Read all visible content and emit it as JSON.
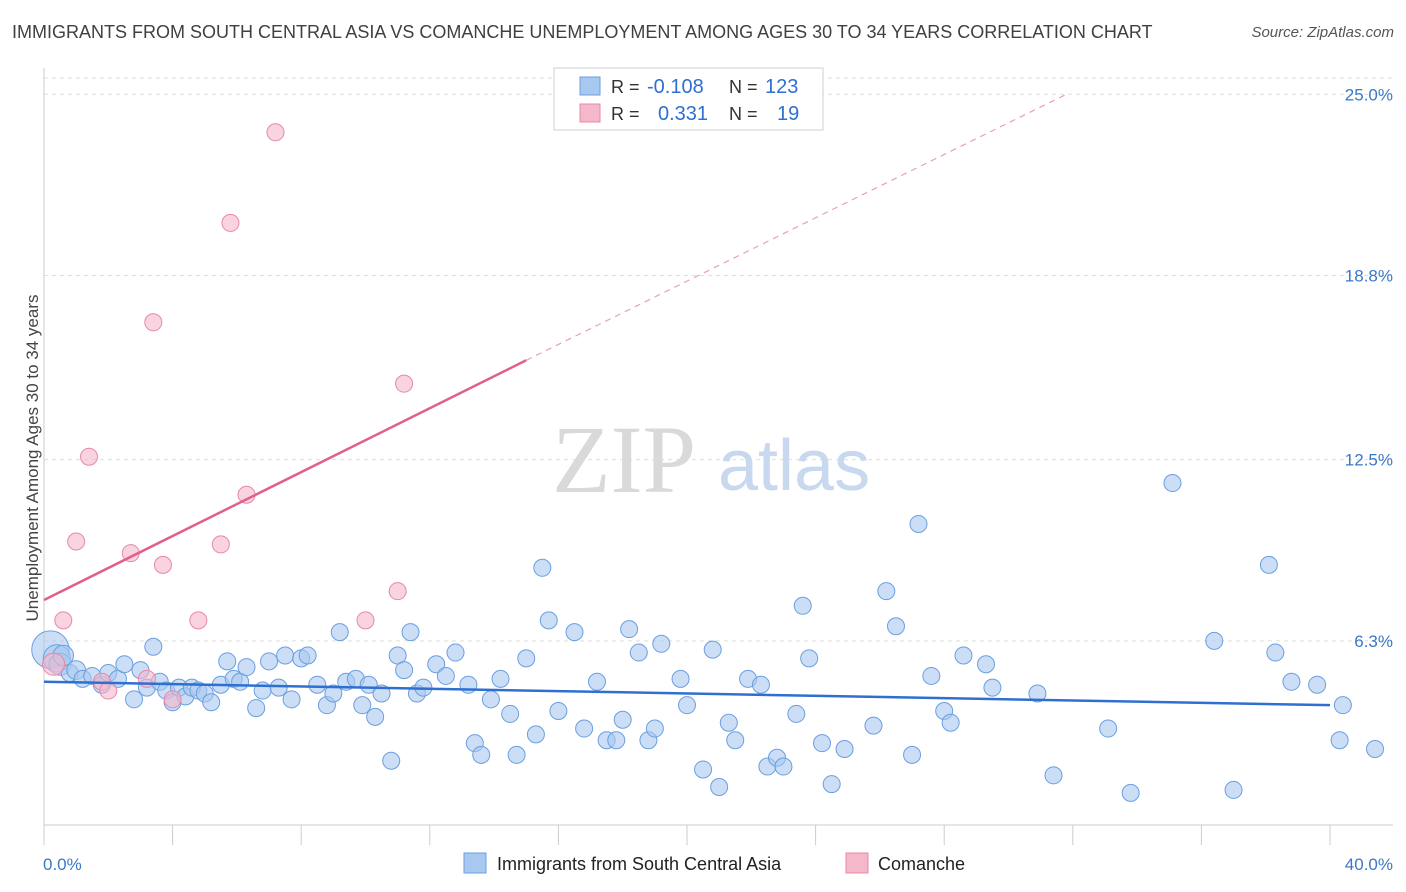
{
  "title": "IMMIGRANTS FROM SOUTH CENTRAL ASIA VS COMANCHE UNEMPLOYMENT AMONG AGES 30 TO 34 YEARS CORRELATION CHART",
  "source": "Source: ZipAtlas.com",
  "watermark": {
    "zip": "ZIP",
    "atlas": "atlas"
  },
  "legend_box": [
    {
      "r_label": "R =",
      "r_value": "-0.108",
      "n_label": "N =",
      "n_value": "123",
      "color": "#a9c8f0"
    },
    {
      "r_label": "R =",
      "r_value": "0.331",
      "n_label": "N =",
      "n_value": "19",
      "color": "#f5b8cb"
    }
  ],
  "bottom_legend": [
    {
      "label": "Immigrants from South Central Asia",
      "color": "#a9c8f0"
    },
    {
      "label": "Comanche",
      "color": "#f5b8cb"
    }
  ],
  "chart_data": {
    "type": "scatter",
    "title": "IMMIGRANTS FROM SOUTH CENTRAL ASIA VS COMANCHE UNEMPLOYMENT AMONG AGES 30 TO 34 YEARS CORRELATION CHART",
    "xlabel": "",
    "ylabel": "Unemployment Among Ages 30 to 34 years",
    "xlim": [
      0,
      40
    ],
    "ylim": [
      0,
      25.9
    ],
    "x_tick_labels": [
      "0.0%",
      "40.0%"
    ],
    "y_ticks": [
      6.3,
      12.5,
      18.8,
      25.0
    ],
    "y_tick_labels": [
      "6.3%",
      "12.5%",
      "18.8%",
      "25.0%"
    ],
    "grid": "horizontal dashed",
    "legend_position": "top-center",
    "series": [
      {
        "name": "Immigrants from South Central Asia",
        "color": "#a9c8f0",
        "stroke": "#6a9fe0",
        "trend": {
          "x": [
            0,
            40
          ],
          "y": [
            4.9,
            4.1
          ],
          "color": "#2f6fd0"
        },
        "points": [
          [
            0.2,
            6.0,
            2.2
          ],
          [
            0.4,
            5.7,
            1.6
          ],
          [
            0.5,
            5.5,
            1.3
          ],
          [
            0.6,
            5.8,
            1.2
          ],
          [
            0.8,
            5.2,
            1.0
          ],
          [
            1.0,
            5.3,
            1.1
          ],
          [
            1.2,
            5.0,
            1.0
          ],
          [
            1.5,
            5.1,
            1.0
          ],
          [
            1.8,
            4.8,
            1
          ],
          [
            2.0,
            5.2,
            1
          ],
          [
            2.3,
            5.0,
            1
          ],
          [
            2.5,
            5.5,
            1
          ],
          [
            2.8,
            4.3,
            1
          ],
          [
            3.0,
            5.3,
            1
          ],
          [
            3.2,
            4.7,
            1
          ],
          [
            3.4,
            6.1,
            1
          ],
          [
            3.6,
            4.9,
            1
          ],
          [
            3.8,
            4.6,
            1
          ],
          [
            4.0,
            4.2,
            1
          ],
          [
            4.2,
            4.7,
            1
          ],
          [
            4.4,
            4.4,
            1
          ],
          [
            4.6,
            4.7,
            1
          ],
          [
            4.8,
            4.6,
            1
          ],
          [
            5.0,
            4.5,
            1
          ],
          [
            5.2,
            4.2,
            1
          ],
          [
            5.5,
            4.8,
            1
          ],
          [
            5.7,
            5.6,
            1
          ],
          [
            5.9,
            5.0,
            1
          ],
          [
            6.1,
            4.9,
            1
          ],
          [
            6.3,
            5.4,
            1
          ],
          [
            6.6,
            4.0,
            1
          ],
          [
            6.8,
            4.6,
            1
          ],
          [
            7.0,
            5.6,
            1
          ],
          [
            7.3,
            4.7,
            1
          ],
          [
            7.5,
            5.8,
            1
          ],
          [
            7.7,
            4.3,
            1
          ],
          [
            8.0,
            5.7,
            1
          ],
          [
            8.2,
            5.8,
            1
          ],
          [
            8.5,
            4.8,
            1
          ],
          [
            8.8,
            4.1,
            1
          ],
          [
            9.0,
            4.5,
            1
          ],
          [
            9.2,
            6.6,
            1
          ],
          [
            9.4,
            4.9,
            1
          ],
          [
            9.7,
            5.0,
            1
          ],
          [
            9.9,
            4.1,
            1
          ],
          [
            10.1,
            4.8,
            1
          ],
          [
            10.3,
            3.7,
            1
          ],
          [
            10.5,
            4.5,
            1
          ],
          [
            10.8,
            2.2,
            1
          ],
          [
            11.0,
            5.8,
            1
          ],
          [
            11.2,
            5.3,
            1
          ],
          [
            11.4,
            6.6,
            1
          ],
          [
            11.6,
            4.5,
            1
          ],
          [
            11.8,
            4.7,
            1
          ],
          [
            12.2,
            5.5,
            1
          ],
          [
            12.5,
            5.1,
            1
          ],
          [
            12.8,
            5.9,
            1
          ],
          [
            13.2,
            4.8,
            1
          ],
          [
            13.4,
            2.8,
            1
          ],
          [
            13.6,
            2.4,
            1
          ],
          [
            13.9,
            4.3,
            1
          ],
          [
            14.2,
            5.0,
            1
          ],
          [
            14.5,
            3.8,
            1
          ],
          [
            14.7,
            2.4,
            1
          ],
          [
            15.0,
            5.7,
            1
          ],
          [
            15.3,
            3.1,
            1
          ],
          [
            15.5,
            8.8,
            1
          ],
          [
            15.7,
            7.0,
            1
          ],
          [
            16.0,
            3.9,
            1
          ],
          [
            16.5,
            6.6,
            1
          ],
          [
            16.8,
            3.3,
            1
          ],
          [
            17.2,
            4.9,
            1
          ],
          [
            17.5,
            2.9,
            1
          ],
          [
            17.8,
            2.9,
            1
          ],
          [
            18.0,
            3.6,
            1
          ],
          [
            18.2,
            6.7,
            1
          ],
          [
            18.5,
            5.9,
            1
          ],
          [
            18.8,
            2.9,
            1
          ],
          [
            19.0,
            3.3,
            1
          ],
          [
            19.2,
            6.2,
            1
          ],
          [
            19.8,
            5.0,
            1
          ],
          [
            20.0,
            4.1,
            1
          ],
          [
            20.5,
            1.9,
            1
          ],
          [
            20.8,
            6.0,
            1
          ],
          [
            21.0,
            1.3,
            1
          ],
          [
            21.3,
            3.5,
            1
          ],
          [
            21.5,
            2.9,
            1
          ],
          [
            21.9,
            5.0,
            1
          ],
          [
            22.3,
            4.8,
            1
          ],
          [
            22.5,
            2.0,
            1
          ],
          [
            22.8,
            2.3,
            1
          ],
          [
            23.0,
            2.0,
            1
          ],
          [
            23.4,
            3.8,
            1
          ],
          [
            23.6,
            7.5,
            1
          ],
          [
            23.8,
            5.7,
            1
          ],
          [
            24.2,
            2.8,
            1
          ],
          [
            24.5,
            1.4,
            1
          ],
          [
            24.9,
            2.6,
            1
          ],
          [
            25.8,
            3.4,
            1
          ],
          [
            26.2,
            8.0,
            1
          ],
          [
            26.5,
            6.8,
            1
          ],
          [
            27.0,
            2.4,
            1
          ],
          [
            27.2,
            10.3,
            1
          ],
          [
            27.6,
            5.1,
            1
          ],
          [
            28.0,
            3.9,
            1
          ],
          [
            28.2,
            3.5,
            1
          ],
          [
            28.6,
            5.8,
            1
          ],
          [
            29.3,
            5.5,
            1
          ],
          [
            29.5,
            4.7,
            1
          ],
          [
            30.9,
            4.5,
            1
          ],
          [
            31.4,
            1.7,
            1
          ],
          [
            33.1,
            3.3,
            1
          ],
          [
            33.8,
            1.1,
            1
          ],
          [
            35.1,
            11.7,
            1
          ],
          [
            36.4,
            6.3,
            1
          ],
          [
            37.0,
            1.2,
            1
          ],
          [
            38.1,
            8.9,
            1
          ],
          [
            38.3,
            5.9,
            1
          ],
          [
            38.8,
            4.9,
            1
          ],
          [
            39.6,
            4.8,
            1
          ],
          [
            40.4,
            4.1,
            1
          ],
          [
            40.3,
            2.9,
            1
          ],
          [
            41.4,
            2.6,
            1
          ]
        ]
      },
      {
        "name": "Comanche",
        "color": "#f5b8cb",
        "stroke": "#e888a6",
        "trend": {
          "x": [
            0,
            15.0
          ],
          "y": [
            7.7,
            15.9
          ],
          "color": "#e0608a",
          "dashed_extension": {
            "x": [
              15.0,
              31.8
            ],
            "y": [
              15.9,
              25.0
            ]
          }
        },
        "points": [
          [
            0.3,
            5.5,
            1.3
          ],
          [
            0.6,
            7.0,
            1
          ],
          [
            1.0,
            9.7,
            1
          ],
          [
            1.4,
            12.6,
            1
          ],
          [
            1.8,
            4.9,
            1
          ],
          [
            2.0,
            4.6,
            1
          ],
          [
            2.7,
            9.3,
            1
          ],
          [
            3.2,
            5.0,
            1
          ],
          [
            3.4,
            17.2,
            1
          ],
          [
            3.7,
            8.9,
            1
          ],
          [
            4.0,
            4.3,
            1
          ],
          [
            4.8,
            7.0,
            1
          ],
          [
            5.5,
            9.6,
            1
          ],
          [
            5.8,
            20.6,
            1
          ],
          [
            6.3,
            11.3,
            1
          ],
          [
            7.2,
            23.7,
            1
          ],
          [
            10.0,
            7.0,
            1
          ],
          [
            11.0,
            8.0,
            1
          ],
          [
            11.2,
            15.1,
            1
          ]
        ]
      }
    ]
  }
}
